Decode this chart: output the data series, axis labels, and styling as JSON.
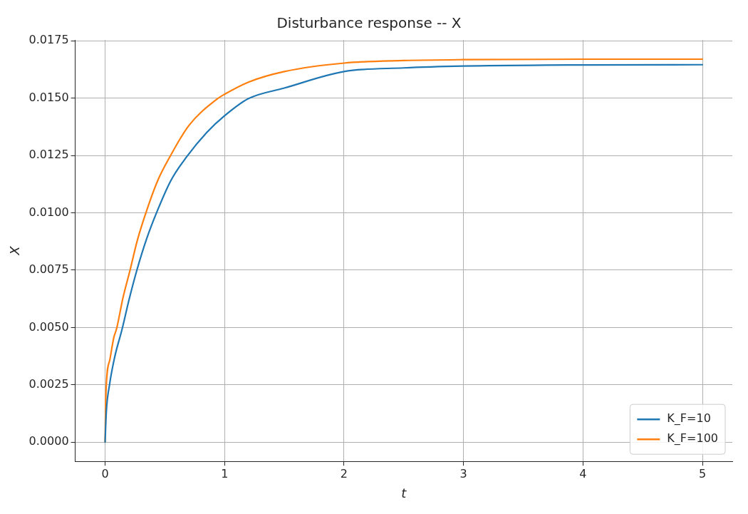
{
  "chart_data": {
    "type": "line",
    "title": "Disturbance response -- X",
    "xlabel": "t",
    "ylabel": "X",
    "xlim": [
      -0.25,
      5.25
    ],
    "ylim": [
      -0.00084,
      0.01754
    ],
    "xticks": [
      0,
      1,
      2,
      3,
      4,
      5
    ],
    "yticks": [
      {
        "value": 0,
        "label": "0.0000"
      },
      {
        "value": 0.0025,
        "label": "0.0025"
      },
      {
        "value": 0.005,
        "label": "0.0050"
      },
      {
        "value": 0.0075,
        "label": "0.0075"
      },
      {
        "value": 0.01,
        "label": "0.0100"
      },
      {
        "value": 0.0125,
        "label": "0.0125"
      },
      {
        "value": 0.015,
        "label": "0.0150"
      },
      {
        "value": 0.0175,
        "label": "0.0175"
      }
    ],
    "grid": true,
    "legend": "bottom right",
    "marker": "none",
    "line_style": "solid",
    "series": [
      {
        "name": "K_F=10",
        "color": "#1f77b4",
        "x": [
          0,
          0.01,
          0.038,
          0.08,
          0.143,
          0.2,
          0.266,
          0.35,
          0.432,
          0.55,
          0.684,
          0.85,
          1,
          1.2,
          1.5,
          2,
          2.5,
          3,
          4,
          5
        ],
        "values": [
          0,
          0.0013,
          0.00253,
          0.0037,
          0.00494,
          0.0062,
          0.0075,
          0.0089,
          0.01002,
          0.0114,
          0.01245,
          0.0135,
          0.01423,
          0.01498,
          0.01544,
          0.01616,
          0.01632,
          0.0164,
          0.01645,
          0.01646
        ]
      },
      {
        "name": "K_F=100",
        "color": "#ff7f0e",
        "x": [
          0,
          0.007,
          0.04,
          0.073,
          0.096,
          0.15,
          0.209,
          0.27,
          0.343,
          0.44,
          0.543,
          0.7,
          0.942,
          1,
          1.2,
          1.5,
          2,
          2.5,
          3,
          4,
          5
        ],
        "values": [
          0,
          0.00214,
          0.0036,
          0.00456,
          0.00494,
          0.0063,
          0.0075,
          0.0088,
          0.01002,
          0.0114,
          0.01245,
          0.0138,
          0.01498,
          0.01517,
          0.0157,
          0.01616,
          0.01653,
          0.01664,
          0.01668,
          0.0167,
          0.0167
        ]
      }
    ]
  }
}
